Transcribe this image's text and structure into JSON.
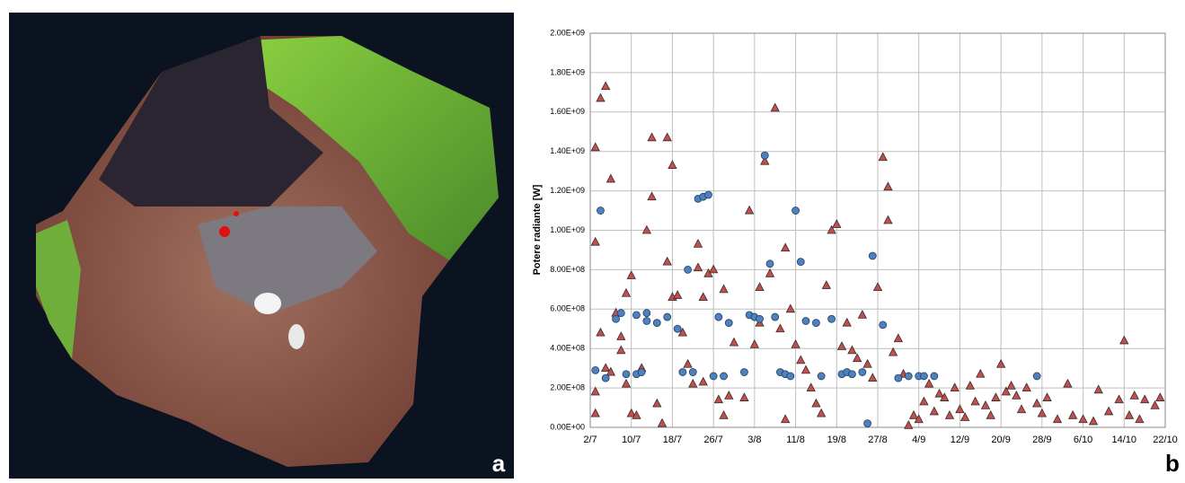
{
  "image_panel": {
    "label": "a"
  },
  "chart_data": {
    "type": "scatter",
    "panel_label": "b",
    "ylabel": "Potere radiante [W]",
    "grid": true,
    "xlim": [
      "2/7",
      "22/10"
    ],
    "xticks": [
      "2/7",
      "10/7",
      "18/7",
      "26/7",
      "3/8",
      "11/8",
      "19/8",
      "27/8",
      "4/9",
      "12/9",
      "20/9",
      "28/9",
      "6/10",
      "14/10",
      "22/10"
    ],
    "ylim": [
      0,
      2000000000
    ],
    "yticks": [
      {
        "value": 0,
        "label": "0.00E+00"
      },
      {
        "value": 200000000,
        "label": "2.00E+08"
      },
      {
        "value": 400000000,
        "label": "4.00E+08"
      },
      {
        "value": 600000000,
        "label": "6.00E+08"
      },
      {
        "value": 800000000,
        "label": "8.00E+08"
      },
      {
        "value": 1000000000,
        "label": "1.00E+09"
      },
      {
        "value": 1200000000,
        "label": "1.20E+09"
      },
      {
        "value": 1400000000,
        "label": "1.40E+09"
      },
      {
        "value": 1600000000,
        "label": "1.60E+09"
      },
      {
        "value": 1800000000,
        "label": "1.80E+09"
      },
      {
        "value": 2000000000,
        "label": "2.00E+09"
      }
    ],
    "series": [
      {
        "marker": "triangle",
        "color": "#c0504d",
        "x": [
          "3/7",
          "4/7",
          "5/7",
          "6/7",
          "3/7",
          "3/7",
          "3/7",
          "4/7",
          "5/7",
          "6/7",
          "7/7",
          "8/7",
          "8/7",
          "9/7",
          "9/7",
          "10/7",
          "10/7",
          "11/7",
          "12/7",
          "13/7",
          "14/7",
          "14/7",
          "15/7",
          "16/7",
          "17/7",
          "17/7",
          "18/7",
          "18/7",
          "19/7",
          "20/7",
          "21/7",
          "22/7",
          "23/7",
          "23/7",
          "24/7",
          "24/7",
          "25/7",
          "26/7",
          "27/7",
          "28/7",
          "28/7",
          "29/7",
          "30/7",
          "1/8",
          "2/8",
          "3/8",
          "4/8",
          "4/8",
          "5/8",
          "6/8",
          "7/8",
          "8/8",
          "9/8",
          "9/8",
          "10/8",
          "11/8",
          "12/8",
          "13/8",
          "14/8",
          "15/8",
          "16/8",
          "17/8",
          "18/8",
          "19/8",
          "20/8",
          "21/8",
          "22/8",
          "23/8",
          "24/8",
          "25/8",
          "26/8",
          "27/8",
          "28/8",
          "29/8",
          "29/8",
          "30/8",
          "31/8",
          "1/9",
          "2/9",
          "3/9",
          "4/9",
          "5/9",
          "6/9",
          "7/9",
          "8/9",
          "9/9",
          "10/9",
          "11/9",
          "12/9",
          "13/9",
          "14/9",
          "15/9",
          "16/9",
          "17/9",
          "18/9",
          "19/9",
          "20/9",
          "21/9",
          "22/9",
          "23/9",
          "24/9",
          "25/9",
          "27/9",
          "28/9",
          "29/9",
          "1/10",
          "3/10",
          "4/10",
          "6/10",
          "8/10",
          "9/10",
          "11/10",
          "13/10",
          "14/10",
          "15/10",
          "16/10",
          "17/10",
          "18/10",
          "20/10",
          "21/10"
        ],
        "values": [
          1420000000,
          1670000000,
          1730000000,
          1260000000,
          940000000,
          180000000,
          70000000,
          480000000,
          300000000,
          280000000,
          580000000,
          460000000,
          390000000,
          680000000,
          220000000,
          770000000,
          70000000,
          60000000,
          300000000,
          1000000000,
          1470000000,
          1170000000,
          120000000,
          20000000,
          1470000000,
          840000000,
          1330000000,
          660000000,
          670000000,
          480000000,
          320000000,
          220000000,
          930000000,
          810000000,
          660000000,
          230000000,
          780000000,
          800000000,
          140000000,
          700000000,
          60000000,
          160000000,
          430000000,
          150000000,
          1100000000,
          420000000,
          530000000,
          710000000,
          1350000000,
          780000000,
          1620000000,
          500000000,
          910000000,
          40000000,
          600000000,
          420000000,
          340000000,
          290000000,
          200000000,
          120000000,
          70000000,
          720000000,
          1000000000,
          1030000000,
          410000000,
          530000000,
          390000000,
          350000000,
          570000000,
          320000000,
          250000000,
          710000000,
          1370000000,
          1220000000,
          1050000000,
          380000000,
          450000000,
          270000000,
          10000000,
          60000000,
          40000000,
          130000000,
          220000000,
          80000000,
          170000000,
          150000000,
          60000000,
          200000000,
          90000000,
          50000000,
          210000000,
          130000000,
          270000000,
          110000000,
          60000000,
          150000000,
          320000000,
          180000000,
          210000000,
          160000000,
          90000000,
          200000000,
          120000000,
          70000000,
          150000000,
          40000000,
          220000000,
          60000000,
          40000000,
          30000000,
          190000000,
          80000000,
          140000000,
          440000000,
          60000000,
          160000000,
          40000000,
          140000000,
          110000000,
          150000000
        ]
      },
      {
        "marker": "circle",
        "color": "#4f81bd",
        "x": [
          "3/7",
          "4/7",
          "5/7",
          "7/7",
          "8/7",
          "9/7",
          "11/7",
          "11/7",
          "12/7",
          "13/7",
          "13/7",
          "15/7",
          "17/7",
          "19/7",
          "20/7",
          "21/7",
          "22/7",
          "23/7",
          "24/7",
          "25/7",
          "26/7",
          "27/7",
          "28/7",
          "29/7",
          "1/8",
          "2/8",
          "3/8",
          "4/8",
          "5/8",
          "6/8",
          "7/8",
          "8/8",
          "9/8",
          "10/8",
          "11/8",
          "12/8",
          "13/8",
          "15/8",
          "16/8",
          "18/8",
          "20/8",
          "21/8",
          "22/8",
          "24/8",
          "25/8",
          "26/8",
          "28/8",
          "31/8",
          "2/9",
          "4/9",
          "5/9",
          "7/9",
          "27/9"
        ],
        "values": [
          290000000,
          1100000000,
          250000000,
          550000000,
          580000000,
          270000000,
          570000000,
          270000000,
          280000000,
          580000000,
          540000000,
          530000000,
          560000000,
          500000000,
          280000000,
          800000000,
          280000000,
          1160000000,
          1170000000,
          1180000000,
          260000000,
          560000000,
          260000000,
          530000000,
          280000000,
          570000000,
          560000000,
          550000000,
          1380000000,
          830000000,
          560000000,
          280000000,
          270000000,
          260000000,
          1100000000,
          840000000,
          540000000,
          530000000,
          260000000,
          550000000,
          270000000,
          280000000,
          270000000,
          280000000,
          20000000,
          870000000,
          520000000,
          250000000,
          260000000,
          260000000,
          260000000,
          260000000,
          260000000
        ]
      }
    ]
  }
}
